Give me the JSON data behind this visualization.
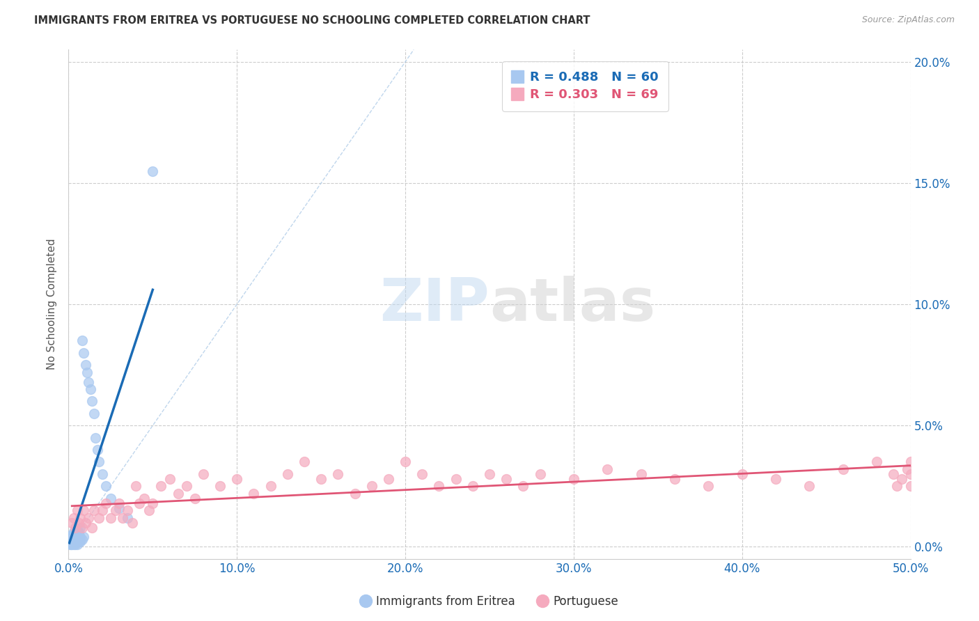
{
  "title": "IMMIGRANTS FROM ERITREA VS PORTUGUESE NO SCHOOLING COMPLETED CORRELATION CHART",
  "source": "Source: ZipAtlas.com",
  "ylabel": "No Schooling Completed",
  "xlim": [
    0,
    0.5
  ],
  "ylim": [
    -0.005,
    0.205
  ],
  "xticks": [
    0.0,
    0.1,
    0.2,
    0.3,
    0.4,
    0.5
  ],
  "yticks": [
    0.0,
    0.05,
    0.1,
    0.15,
    0.2
  ],
  "blue_R": 0.488,
  "blue_N": 60,
  "pink_R": 0.303,
  "pink_N": 69,
  "blue_color": "#a8c8f0",
  "blue_line_color": "#1a6bb5",
  "pink_color": "#f5aabe",
  "pink_line_color": "#e05575",
  "diag_line_color": "#b0cce8",
  "legend_label_blue": "Immigrants from Eritrea",
  "legend_label_pink": "Portuguese",
  "watermark_zip": "ZIP",
  "watermark_atlas": "atlas",
  "blue_x": [
    0.0005,
    0.001,
    0.001,
    0.001,
    0.001,
    0.0015,
    0.0015,
    0.002,
    0.002,
    0.002,
    0.002,
    0.002,
    0.003,
    0.003,
    0.003,
    0.003,
    0.003,
    0.003,
    0.003,
    0.004,
    0.004,
    0.004,
    0.004,
    0.004,
    0.004,
    0.005,
    0.005,
    0.005,
    0.005,
    0.005,
    0.005,
    0.005,
    0.006,
    0.006,
    0.006,
    0.006,
    0.006,
    0.007,
    0.007,
    0.007,
    0.007,
    0.008,
    0.008,
    0.009,
    0.009,
    0.01,
    0.011,
    0.012,
    0.013,
    0.014,
    0.015,
    0.016,
    0.017,
    0.018,
    0.02,
    0.022,
    0.025,
    0.03,
    0.035,
    0.05
  ],
  "blue_y": [
    0.002,
    0.001,
    0.002,
    0.003,
    0.004,
    0.001,
    0.003,
    0.001,
    0.002,
    0.003,
    0.004,
    0.005,
    0.001,
    0.002,
    0.003,
    0.003,
    0.004,
    0.005,
    0.006,
    0.001,
    0.002,
    0.002,
    0.003,
    0.004,
    0.005,
    0.001,
    0.002,
    0.003,
    0.004,
    0.005,
    0.006,
    0.007,
    0.002,
    0.003,
    0.004,
    0.005,
    0.006,
    0.002,
    0.003,
    0.004,
    0.008,
    0.003,
    0.085,
    0.004,
    0.08,
    0.075,
    0.072,
    0.068,
    0.065,
    0.06,
    0.055,
    0.045,
    0.04,
    0.035,
    0.03,
    0.025,
    0.02,
    0.016,
    0.012,
    0.155
  ],
  "pink_x": [
    0.002,
    0.003,
    0.004,
    0.005,
    0.006,
    0.007,
    0.008,
    0.009,
    0.01,
    0.012,
    0.014,
    0.015,
    0.018,
    0.02,
    0.022,
    0.025,
    0.028,
    0.03,
    0.032,
    0.035,
    0.038,
    0.04,
    0.042,
    0.045,
    0.048,
    0.05,
    0.055,
    0.06,
    0.065,
    0.07,
    0.075,
    0.08,
    0.09,
    0.1,
    0.11,
    0.12,
    0.13,
    0.14,
    0.15,
    0.16,
    0.17,
    0.18,
    0.19,
    0.2,
    0.21,
    0.22,
    0.23,
    0.24,
    0.25,
    0.26,
    0.27,
    0.28,
    0.3,
    0.32,
    0.34,
    0.36,
    0.38,
    0.4,
    0.42,
    0.44,
    0.46,
    0.48,
    0.49,
    0.492,
    0.495,
    0.498,
    0.5,
    0.5,
    0.5
  ],
  "pink_y": [
    0.01,
    0.012,
    0.008,
    0.015,
    0.01,
    0.012,
    0.008,
    0.015,
    0.01,
    0.012,
    0.008,
    0.015,
    0.012,
    0.015,
    0.018,
    0.012,
    0.015,
    0.018,
    0.012,
    0.015,
    0.01,
    0.025,
    0.018,
    0.02,
    0.015,
    0.018,
    0.025,
    0.028,
    0.022,
    0.025,
    0.02,
    0.03,
    0.025,
    0.028,
    0.022,
    0.025,
    0.03,
    0.035,
    0.028,
    0.03,
    0.022,
    0.025,
    0.028,
    0.035,
    0.03,
    0.025,
    0.028,
    0.025,
    0.03,
    0.028,
    0.025,
    0.03,
    0.028,
    0.032,
    0.03,
    0.028,
    0.025,
    0.03,
    0.028,
    0.025,
    0.032,
    0.035,
    0.03,
    0.025,
    0.028,
    0.032,
    0.035,
    0.03,
    0.025
  ]
}
